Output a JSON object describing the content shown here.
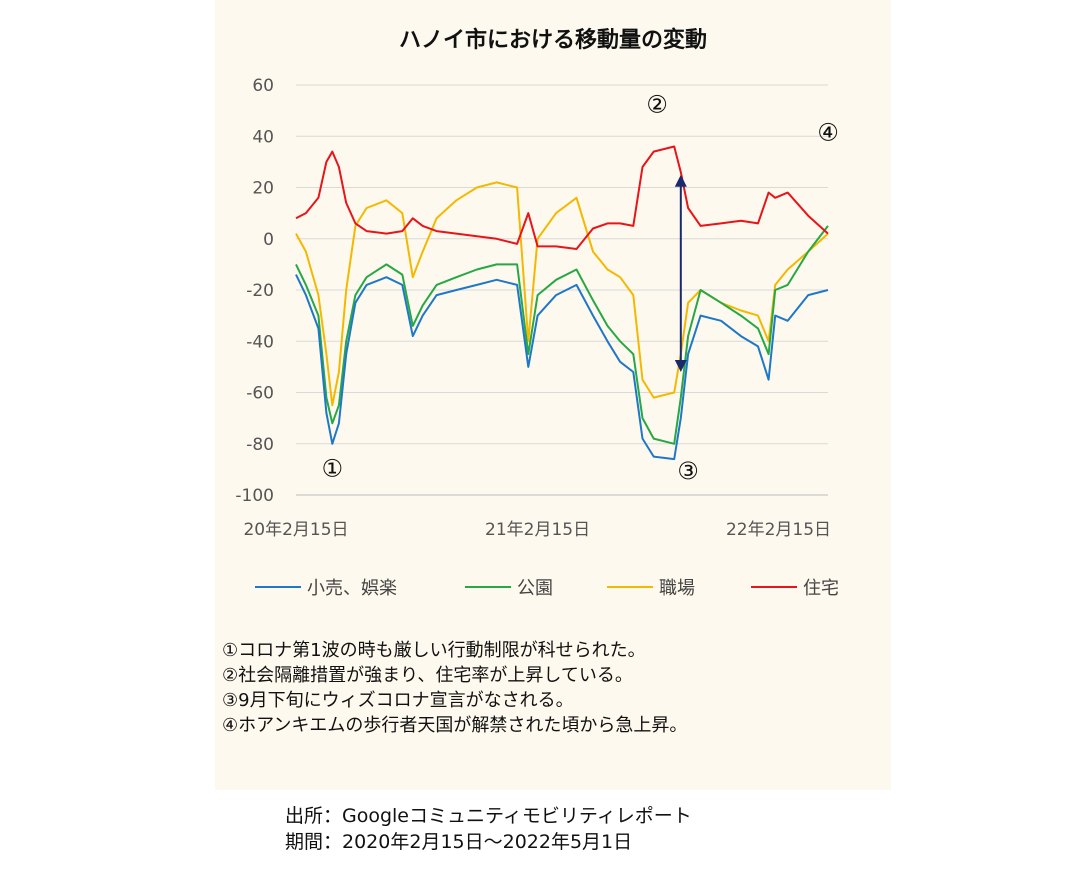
{
  "page": {
    "notes": [
      "①コロナ第1波の時も厳しい行動制限が科せられた。",
      "②社会隔離措置が強まり、住宅率が上昇している。",
      "③9月下旬にウィズコロナ宣言がなされる。",
      "④ホアンキエムの歩行者天国が解禁された頃から急上昇。"
    ],
    "source_line": "出所：Googleコミュニティモビリティレポート",
    "period_line": "期間：2020年2月15日～2022年5月1日"
  },
  "chart_data": {
    "type": "line",
    "title": "ハノイ市における移動量の変動",
    "xlabel": "",
    "ylabel": "",
    "ylim": [
      -100,
      60
    ],
    "yticks": [
      60,
      40,
      20,
      0,
      -20,
      -40,
      -60,
      -80,
      -100
    ],
    "xlim": [
      "2020-02-15",
      "2022-05-01"
    ],
    "xticks": [
      {
        "date": "2020-02-15",
        "label": "20年2月15日"
      },
      {
        "date": "2021-02-15",
        "label": "21年2月15日"
      },
      {
        "date": "2022-02-15",
        "label": "22年2月15日"
      }
    ],
    "grid": true,
    "legend_position": "bottom",
    "series": [
      {
        "name": "小売、娯楽",
        "color": "#1f77c8",
        "points": [
          [
            "2020-02-15",
            -14
          ],
          [
            "2020-03-01",
            -22
          ],
          [
            "2020-03-20",
            -35
          ],
          [
            "2020-04-01",
            -68
          ],
          [
            "2020-04-10",
            -80
          ],
          [
            "2020-04-20",
            -72
          ],
          [
            "2020-05-01",
            -45
          ],
          [
            "2020-05-15",
            -25
          ],
          [
            "2020-06-01",
            -18
          ],
          [
            "2020-07-01",
            -15
          ],
          [
            "2020-07-25",
            -18
          ],
          [
            "2020-08-10",
            -38
          ],
          [
            "2020-08-25",
            -30
          ],
          [
            "2020-09-15",
            -22
          ],
          [
            "2020-10-15",
            -20
          ],
          [
            "2020-11-15",
            -18
          ],
          [
            "2020-12-15",
            -16
          ],
          [
            "2021-01-15",
            -18
          ],
          [
            "2021-02-01",
            -50
          ],
          [
            "2021-02-15",
            -30
          ],
          [
            "2021-03-15",
            -22
          ],
          [
            "2021-04-15",
            -18
          ],
          [
            "2021-05-10",
            -30
          ],
          [
            "2021-06-01",
            -40
          ],
          [
            "2021-06-20",
            -48
          ],
          [
            "2021-07-10",
            -52
          ],
          [
            "2021-07-24",
            -78
          ],
          [
            "2021-08-10",
            -85
          ],
          [
            "2021-09-10",
            -86
          ],
          [
            "2021-09-20",
            -70
          ],
          [
            "2021-10-01",
            -45
          ],
          [
            "2021-10-20",
            -30
          ],
          [
            "2021-11-20",
            -32
          ],
          [
            "2021-12-20",
            -38
          ],
          [
            "2022-01-15",
            -42
          ],
          [
            "2022-01-31",
            -55
          ],
          [
            "2022-02-10",
            -30
          ],
          [
            "2022-03-01",
            -32
          ],
          [
            "2022-04-01",
            -22
          ],
          [
            "2022-05-01",
            -20
          ]
        ]
      },
      {
        "name": "公園",
        "color": "#27a844",
        "points": [
          [
            "2020-02-15",
            -10
          ],
          [
            "2020-03-01",
            -18
          ],
          [
            "2020-03-20",
            -30
          ],
          [
            "2020-04-01",
            -62
          ],
          [
            "2020-04-10",
            -72
          ],
          [
            "2020-04-20",
            -65
          ],
          [
            "2020-05-01",
            -40
          ],
          [
            "2020-05-15",
            -22
          ],
          [
            "2020-06-01",
            -15
          ],
          [
            "2020-07-01",
            -10
          ],
          [
            "2020-07-25",
            -14
          ],
          [
            "2020-08-10",
            -34
          ],
          [
            "2020-08-25",
            -26
          ],
          [
            "2020-09-15",
            -18
          ],
          [
            "2020-10-15",
            -15
          ],
          [
            "2020-11-15",
            -12
          ],
          [
            "2020-12-15",
            -10
          ],
          [
            "2021-01-15",
            -10
          ],
          [
            "2021-02-01",
            -45
          ],
          [
            "2021-02-15",
            -22
          ],
          [
            "2021-03-15",
            -16
          ],
          [
            "2021-04-15",
            -12
          ],
          [
            "2021-05-10",
            -24
          ],
          [
            "2021-06-01",
            -34
          ],
          [
            "2021-06-20",
            -40
          ],
          [
            "2021-07-10",
            -45
          ],
          [
            "2021-07-24",
            -70
          ],
          [
            "2021-08-10",
            -78
          ],
          [
            "2021-09-10",
            -80
          ],
          [
            "2021-09-20",
            -62
          ],
          [
            "2021-10-01",
            -38
          ],
          [
            "2021-10-20",
            -20
          ],
          [
            "2021-11-20",
            -25
          ],
          [
            "2021-12-20",
            -30
          ],
          [
            "2022-01-15",
            -35
          ],
          [
            "2022-01-31",
            -45
          ],
          [
            "2022-02-10",
            -20
          ],
          [
            "2022-03-01",
            -18
          ],
          [
            "2022-04-01",
            -5
          ],
          [
            "2022-05-01",
            5
          ]
        ]
      },
      {
        "name": "職場",
        "color": "#f5b800",
        "points": [
          [
            "2020-02-15",
            2
          ],
          [
            "2020-03-01",
            -5
          ],
          [
            "2020-03-20",
            -22
          ],
          [
            "2020-04-01",
            -45
          ],
          [
            "2020-04-10",
            -65
          ],
          [
            "2020-04-20",
            -52
          ],
          [
            "2020-05-01",
            -20
          ],
          [
            "2020-05-15",
            5
          ],
          [
            "2020-06-01",
            12
          ],
          [
            "2020-07-01",
            15
          ],
          [
            "2020-07-25",
            10
          ],
          [
            "2020-08-10",
            -15
          ],
          [
            "2020-08-25",
            -5
          ],
          [
            "2020-09-15",
            8
          ],
          [
            "2020-10-15",
            15
          ],
          [
            "2020-11-15",
            20
          ],
          [
            "2020-12-15",
            22
          ],
          [
            "2021-01-15",
            20
          ],
          [
            "2021-02-01",
            -40
          ],
          [
            "2021-02-15",
            0
          ],
          [
            "2021-03-15",
            10
          ],
          [
            "2021-04-15",
            16
          ],
          [
            "2021-05-10",
            -5
          ],
          [
            "2021-06-01",
            -12
          ],
          [
            "2021-06-20",
            -15
          ],
          [
            "2021-07-10",
            -22
          ],
          [
            "2021-07-24",
            -55
          ],
          [
            "2021-08-10",
            -62
          ],
          [
            "2021-09-10",
            -60
          ],
          [
            "2021-09-20",
            -45
          ],
          [
            "2021-10-01",
            -25
          ],
          [
            "2021-10-20",
            -20
          ],
          [
            "2021-11-20",
            -25
          ],
          [
            "2021-12-20",
            -28
          ],
          [
            "2022-01-15",
            -30
          ],
          [
            "2022-01-31",
            -40
          ],
          [
            "2022-02-10",
            -18
          ],
          [
            "2022-03-01",
            -12
          ],
          [
            "2022-04-01",
            -5
          ],
          [
            "2022-05-01",
            2
          ]
        ]
      },
      {
        "name": "住宅",
        "color": "#e8141a",
        "points": [
          [
            "2020-02-15",
            8
          ],
          [
            "2020-03-01",
            10
          ],
          [
            "2020-03-20",
            16
          ],
          [
            "2020-04-01",
            30
          ],
          [
            "2020-04-10",
            34
          ],
          [
            "2020-04-20",
            28
          ],
          [
            "2020-05-01",
            14
          ],
          [
            "2020-05-15",
            6
          ],
          [
            "2020-06-01",
            3
          ],
          [
            "2020-07-01",
            2
          ],
          [
            "2020-07-25",
            3
          ],
          [
            "2020-08-10",
            8
          ],
          [
            "2020-08-25",
            5
          ],
          [
            "2020-09-15",
            3
          ],
          [
            "2020-10-15",
            2
          ],
          [
            "2020-11-15",
            1
          ],
          [
            "2020-12-15",
            0
          ],
          [
            "2021-01-15",
            -2
          ],
          [
            "2021-02-01",
            10
          ],
          [
            "2021-02-15",
            -3
          ],
          [
            "2021-03-15",
            -3
          ],
          [
            "2021-04-15",
            -4
          ],
          [
            "2021-05-10",
            4
          ],
          [
            "2021-06-01",
            6
          ],
          [
            "2021-06-20",
            6
          ],
          [
            "2021-07-10",
            5
          ],
          [
            "2021-07-24",
            28
          ],
          [
            "2021-08-10",
            34
          ],
          [
            "2021-09-10",
            36
          ],
          [
            "2021-09-20",
            26
          ],
          [
            "2021-10-01",
            12
          ],
          [
            "2021-10-20",
            5
          ],
          [
            "2021-11-20",
            6
          ],
          [
            "2021-12-20",
            7
          ],
          [
            "2022-01-15",
            6
          ],
          [
            "2022-01-31",
            18
          ],
          [
            "2022-02-10",
            16
          ],
          [
            "2022-03-01",
            18
          ],
          [
            "2022-04-01",
            9
          ],
          [
            "2022-05-01",
            2
          ]
        ]
      }
    ],
    "annotations": [
      {
        "label": "①",
        "date": "2020-04-10",
        "y": -90
      },
      {
        "label": "②",
        "date": "2021-08-15",
        "y": 52
      },
      {
        "label": "③",
        "date": "2021-10-01",
        "y": -91
      },
      {
        "label": "④",
        "date": "2022-05-01",
        "y": 41
      }
    ],
    "arrow": {
      "date": "2021-09-20",
      "y_top": 25,
      "y_bottom": -52,
      "color": "#1a2a6c"
    }
  }
}
